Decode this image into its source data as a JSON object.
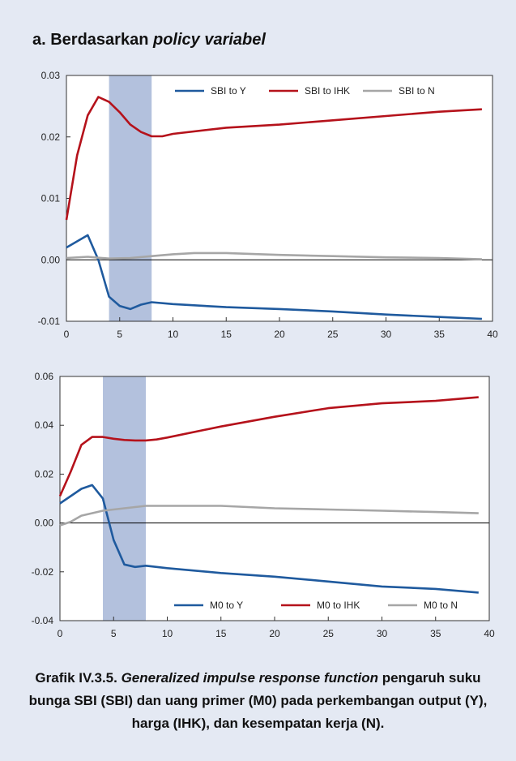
{
  "panel_title": {
    "prefix": "a. Berdasarkan ",
    "italic": "policy variabel"
  },
  "caption": {
    "label": "Grafik IV.3.5.",
    "italic": "Generalized impulse response function",
    "text": "pengaruh suku bunga SBI (SBI) dan uang primer (M0) pada perkembangan output (Y), harga (IHK), dan kesempatan kerja (N)."
  },
  "colors": {
    "blue": "#1f5a9e",
    "red": "#b5121b",
    "gray": "#a6a6a6",
    "shade": "#b3c1dd",
    "background": "#e4e9f3"
  },
  "chart_data": [
    {
      "type": "line",
      "xlim": [
        0,
        40
      ],
      "ylim": [
        -0.01,
        0.03
      ],
      "x_ticks": [
        0,
        5,
        10,
        15,
        20,
        25,
        30,
        35,
        40
      ],
      "y_ticks": [
        -0.01,
        0.0,
        0.01,
        0.02,
        0.03
      ],
      "y_tick_labels": [
        "-0.01",
        "0.00",
        "0.01",
        "0.02",
        "0.03"
      ],
      "shaded_x": [
        4,
        8
      ],
      "legend_position": "top",
      "series": [
        {
          "name": "SBI to Y",
          "color": "#1f5a9e",
          "x": [
            0,
            2,
            3,
            4,
            5,
            6,
            7,
            8,
            10,
            15,
            20,
            25,
            30,
            35,
            39
          ],
          "y": [
            0.002,
            0.004,
            0.0,
            -0.006,
            -0.0075,
            -0.008,
            -0.0073,
            -0.0069,
            -0.0072,
            -0.0077,
            -0.008,
            -0.0084,
            -0.0089,
            -0.0093,
            -0.0096
          ]
        },
        {
          "name": "SBI to IHK",
          "color": "#b5121b",
          "x": [
            0,
            1,
            2,
            3,
            4,
            5,
            6,
            7,
            8,
            9,
            10,
            15,
            20,
            25,
            30,
            35,
            39
          ],
          "y": [
            0.0065,
            0.017,
            0.0235,
            0.0265,
            0.0257,
            0.024,
            0.022,
            0.0208,
            0.0201,
            0.0201,
            0.0205,
            0.0215,
            0.022,
            0.0227,
            0.0234,
            0.0241,
            0.0245
          ]
        },
        {
          "name": "SBI to N",
          "color": "#a6a6a6",
          "x": [
            0,
            2,
            4,
            6,
            8,
            10,
            12,
            15,
            20,
            25,
            30,
            35,
            39
          ],
          "y": [
            0.0003,
            0.0005,
            0.0002,
            0.0003,
            0.0006,
            0.0009,
            0.0011,
            0.0011,
            0.0008,
            0.0006,
            0.0004,
            0.0003,
            0.0001
          ]
        }
      ]
    },
    {
      "type": "line",
      "xlim": [
        0,
        40
      ],
      "ylim": [
        -0.04,
        0.06
      ],
      "x_ticks": [
        0,
        5,
        10,
        15,
        20,
        25,
        30,
        35,
        40
      ],
      "y_ticks": [
        -0.04,
        -0.02,
        0.0,
        0.02,
        0.04,
        0.06
      ],
      "y_tick_labels": [
        "-0.04",
        "-0.02",
        "0.00",
        "0.02",
        "0.04",
        "0.06"
      ],
      "shaded_x": [
        4,
        8
      ],
      "legend_position": "bottom",
      "series": [
        {
          "name": "M0 to Y",
          "color": "#1f5a9e",
          "x": [
            0,
            1,
            2,
            3,
            4,
            5,
            6,
            7,
            8,
            9,
            10,
            15,
            20,
            25,
            30,
            35,
            39
          ],
          "y": [
            0.008,
            0.011,
            0.014,
            0.0155,
            0.01,
            -0.007,
            -0.017,
            -0.018,
            -0.0175,
            -0.018,
            -0.0185,
            -0.0205,
            -0.022,
            -0.024,
            -0.026,
            -0.027,
            -0.0285
          ]
        },
        {
          "name": "M0 to IHK",
          "color": "#b5121b",
          "x": [
            0,
            1,
            2,
            3,
            4,
            5,
            6,
            7,
            8,
            9,
            10,
            15,
            20,
            25,
            30,
            35,
            39
          ],
          "y": [
            0.011,
            0.021,
            0.032,
            0.0352,
            0.0352,
            0.0345,
            0.034,
            0.0338,
            0.0338,
            0.0342,
            0.035,
            0.0395,
            0.0435,
            0.047,
            0.049,
            0.05,
            0.0515
          ]
        },
        {
          "name": "M0 to N",
          "color": "#a6a6a6",
          "x": [
            0,
            1,
            2,
            4,
            6,
            8,
            10,
            15,
            20,
            25,
            30,
            35,
            39
          ],
          "y": [
            -0.001,
            0.0005,
            0.003,
            0.005,
            0.006,
            0.007,
            0.007,
            0.007,
            0.006,
            0.0055,
            0.005,
            0.0045,
            0.004
          ]
        }
      ]
    }
  ]
}
